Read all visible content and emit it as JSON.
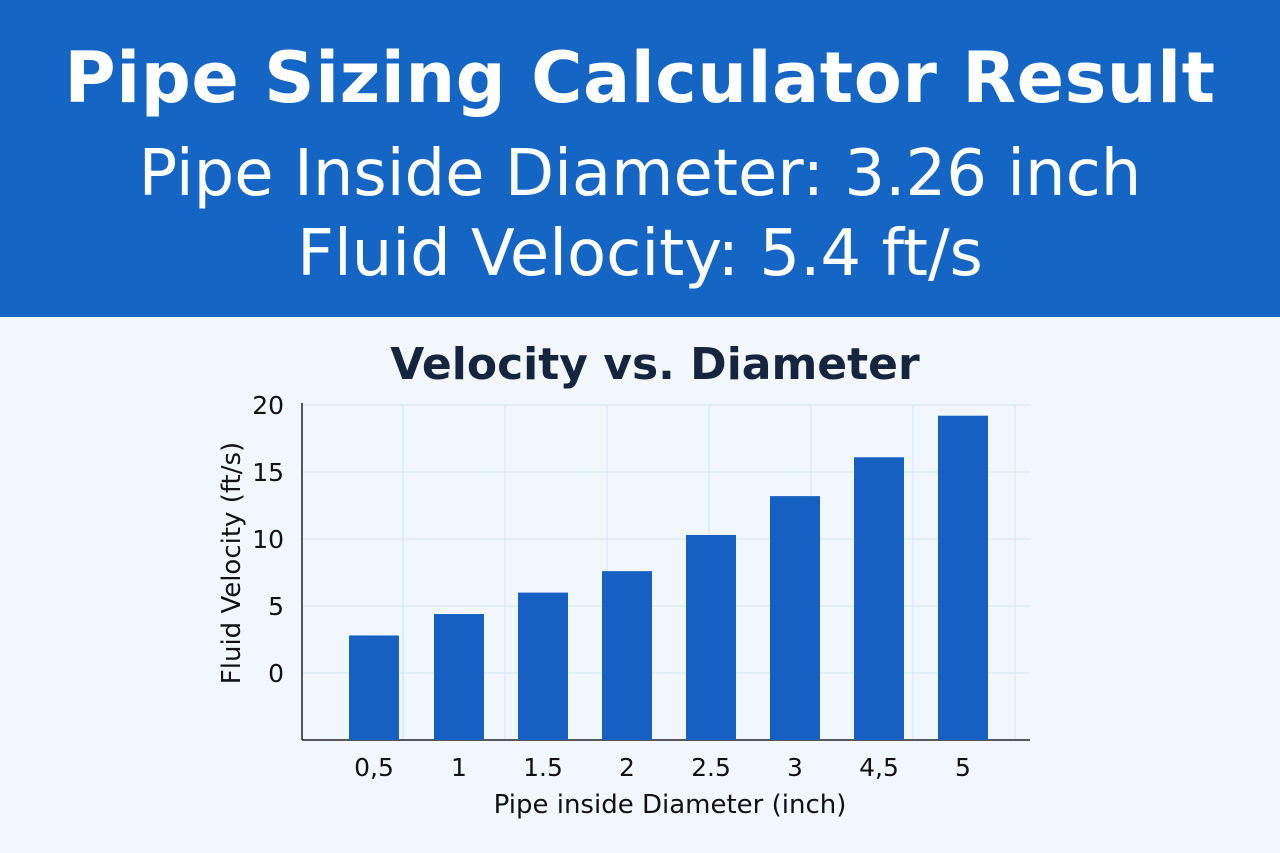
{
  "header": {
    "title": "Pipe Sizing Calculator Result",
    "diameter_line": "Pipe Inside Diameter: 3.26 inch",
    "velocity_line": "Fluid Velocity: 5.4 ft/s"
  },
  "colors": {
    "header_bg": "#1565c4",
    "bar": "#1560c0",
    "grid": "#d6e6f2",
    "page_bg": "#f1f7fc"
  },
  "chart_data": {
    "type": "bar",
    "title": "Velocity vs. Diameter",
    "xlabel": "Pipe inside Diameter (inch)",
    "ylabel": "Fluid Velocity (ft/s)",
    "categories": [
      "0,5",
      "1",
      "1.5",
      "2",
      "2.5",
      "3",
      "4,5",
      "5"
    ],
    "values": [
      2.8,
      4.4,
      6.0,
      7.6,
      10.3,
      13.2,
      16.1,
      19.2
    ],
    "yticks": [
      0,
      5,
      10,
      15,
      20
    ],
    "ylim": [
      -5,
      20
    ],
    "grid": true,
    "legend": "none"
  }
}
